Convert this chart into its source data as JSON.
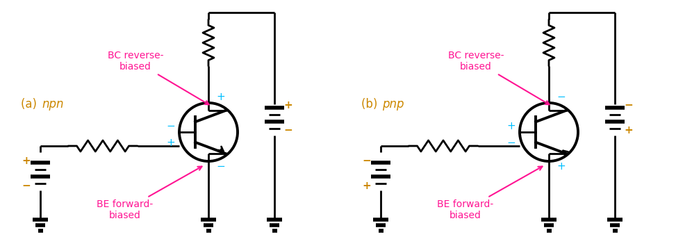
{
  "bg_color": "#ffffff",
  "line_color": "#000000",
  "magenta_color": "#ff1493",
  "cyan_color": "#00bfff",
  "orange_color": "#cc8800",
  "label_a": "(a) ",
  "label_a_italic": "npn",
  "label_b": "(b) ",
  "label_b_italic": "pnp",
  "bc_label": "BC reverse-\nbiased",
  "be_label": "BE forward-\nbiased",
  "figsize": [
    9.73,
    3.41
  ],
  "dpi": 100
}
